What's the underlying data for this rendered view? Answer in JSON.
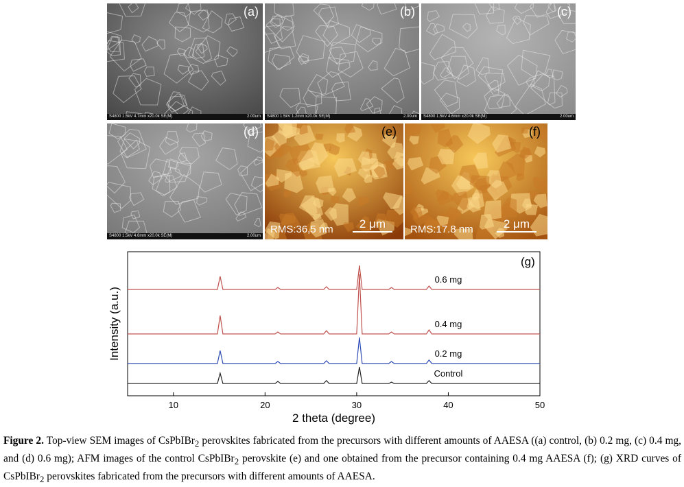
{
  "figure": {
    "panels": [
      {
        "label": "(a)",
        "info": "S4800 1.5kV 4.7mm x20.0k SE(M)",
        "scale": "2.00um"
      },
      {
        "label": "(b)",
        "info": "S4800 1.5kV 1.2mm x20.0k SE(M)",
        "scale": "2.00um"
      },
      {
        "label": "(c)",
        "info": "S4800 1.5kV 4.6mm x20.0k SE(M)",
        "scale": "2.00um"
      },
      {
        "label": "(d)",
        "info": "S4800 1.5kV 4.6mm x20.0k SE(M)",
        "scale": "2.00um"
      },
      {
        "label": "(e)",
        "info": "RMS:36,5 nm",
        "scale": "2 μm"
      },
      {
        "label": "(f)",
        "info": "RMS:17.8 nm",
        "scale": "2 μm"
      }
    ]
  },
  "chart_data": {
    "type": "line",
    "label": "(g)",
    "xlabel": "2 theta (degree)",
    "ylabel": "Intensity (a.u.)",
    "x": [
      5,
      14.8,
      15.1,
      15.4,
      21.1,
      21.4,
      21.7,
      26.4,
      26.7,
      27.0,
      30.0,
      30.3,
      30.6,
      33.5,
      33.8,
      34.1,
      37.6,
      37.9,
      38.2,
      50
    ],
    "series": [
      {
        "name": "0.6 mg",
        "color": "#c0504d",
        "values": [
          73.8,
          73.8,
          82.9,
          73.8,
          73.8,
          75.2,
          73.8,
          73.8,
          75.7,
          73.8,
          73.8,
          90.5,
          73.8,
          73.8,
          75.2,
          73.8,
          73.8,
          76.2,
          73.8,
          73.8
        ]
      },
      {
        "name": "0.4 mg",
        "color": "#c0504d",
        "values": [
          42.9,
          42.9,
          55.7,
          42.9,
          42.9,
          44.3,
          42.9,
          42.9,
          45.2,
          42.9,
          42.9,
          84.3,
          42.9,
          42.9,
          44.3,
          42.9,
          42.9,
          45.7,
          42.9,
          42.9
        ]
      },
      {
        "name": "0.2 mg",
        "color": "#2e4bb5",
        "values": [
          22.4,
          22.4,
          31.4,
          22.4,
          22.4,
          23.8,
          22.4,
          22.4,
          24.3,
          22.4,
          22.4,
          40.5,
          22.4,
          22.4,
          23.8,
          22.4,
          22.4,
          24.8,
          22.4,
          22.4
        ]
      },
      {
        "name": "Control",
        "color": "#222222",
        "values": [
          8.5,
          8.5,
          15.7,
          8.5,
          8.5,
          10,
          8.5,
          8.5,
          10.5,
          8.5,
          8.5,
          20,
          8.5,
          8.5,
          9.5,
          8.5,
          8.5,
          10.5,
          8.5,
          8.5
        ]
      }
    ],
    "xlim": [
      5,
      50
    ],
    "xticks": [
      10,
      20,
      30,
      40,
      50
    ],
    "ylim": [
      0,
      100
    ]
  },
  "caption": {
    "label": "Figure 2.",
    "runs": [
      " Top-view SEM images of CsPbIBr",
      "2",
      " perovskites fabricated from the precursors with different amounts of AAESA ((a) control, (b) 0.2 mg, (c) 0.4 mg, and (d) 0.6 mg); AFM images of the control CsPbIBr",
      "2",
      " perovskite (e) and one obtained from the precursor containing 0.4 mg AAESA (f); (g) XRD curves of CsPbIBr",
      "2",
      " perovskites fabricated from the precursors with different amounts of AAESA."
    ]
  }
}
